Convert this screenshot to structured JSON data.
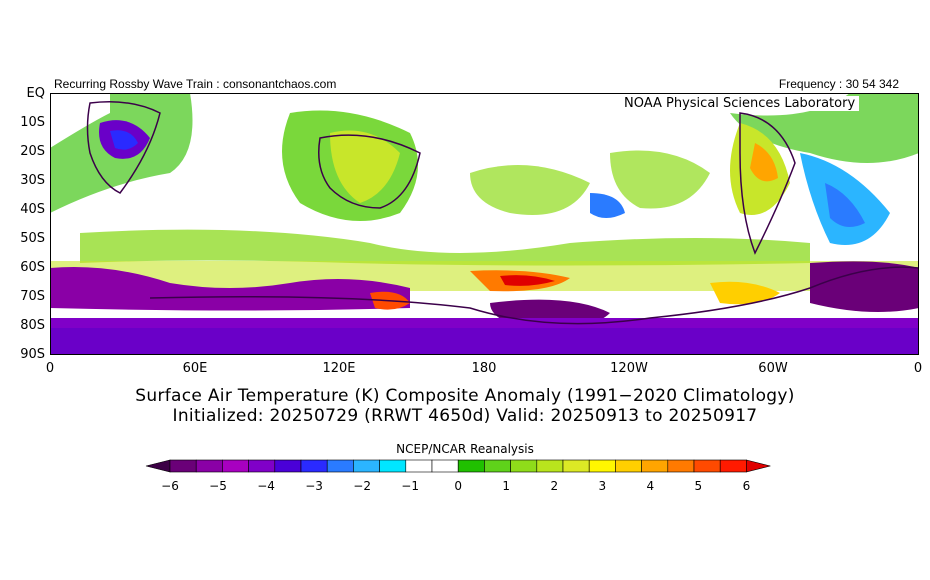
{
  "header": {
    "left_text": "Recurring Rossby Wave Train : consonantchaos.com",
    "right_text": "Frequency : 30 54 342",
    "lab_text": "NOAA Physical Sciences Laboratory"
  },
  "axes": {
    "lat_labels": [
      "EQ",
      "10S",
      "20S",
      "30S",
      "40S",
      "50S",
      "60S",
      "70S",
      "80S",
      "90S"
    ],
    "lon_labels": [
      "0",
      "60E",
      "120E",
      "180",
      "120W",
      "60W",
      "0"
    ]
  },
  "caption": {
    "line1": "Surface Air Temperature (K) Composite Anomaly (1991−2020 Climatology)",
    "line2": "Initialized: 20250729 (RRWT 4650d) Valid: 20250913 to 20250917"
  },
  "colorbar": {
    "title": "NCEP/NCAR Reanalysis",
    "labels": [
      "−6",
      "−5",
      "−4",
      "−3",
      "−2",
      "−1",
      "0",
      "1",
      "2",
      "3",
      "4",
      "5",
      "6"
    ],
    "colors": [
      "#3b0045",
      "#6a0078",
      "#8a00a6",
      "#a800c0",
      "#8000c8",
      "#4a00d8",
      "#2a2aff",
      "#2a7bff",
      "#2bb5ff",
      "#00e6ff",
      "#ffffff",
      "#ffffff",
      "#20c000",
      "#5fd21a",
      "#8fdc1a",
      "#b9e41d",
      "#dce925",
      "#fff700",
      "#ffcf00",
      "#ffa500",
      "#ff7a00",
      "#ff4a00",
      "#ff1a00",
      "#e00000"
    ]
  }
}
